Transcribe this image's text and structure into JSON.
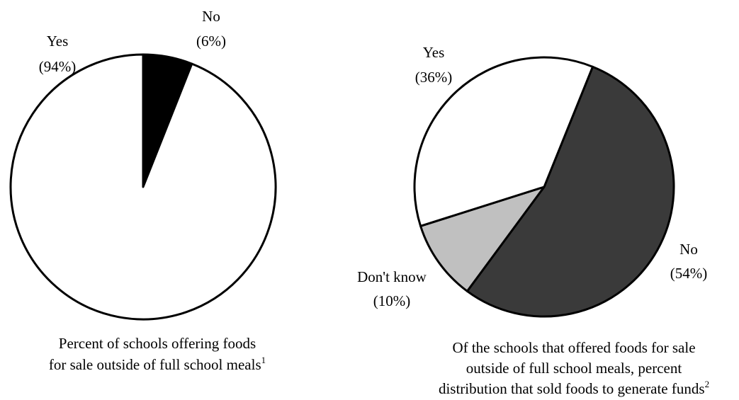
{
  "chart_data": [
    {
      "type": "pie",
      "title": "",
      "caption_lines": [
        "Percent of schools offering foods",
        "for sale outside of full school meals"
      ],
      "caption_footnote": "1",
      "start_angle_deg": 0,
      "direction": "clockwise",
      "slices": [
        {
          "label": "No",
          "value": 6,
          "value_label": "(6%)",
          "color": "#000000"
        },
        {
          "label": "Yes",
          "value": 94,
          "value_label": "(94%)",
          "color": "#ffffff"
        }
      ]
    },
    {
      "type": "pie",
      "title": "",
      "caption_lines": [
        "Of the schools that offered foods for sale",
        "outside of full school meals, percent",
        "distribution that sold foods to generate funds"
      ],
      "caption_footnote": "2",
      "start_angle_deg": 22,
      "direction": "clockwise",
      "slices": [
        {
          "label": "No",
          "value": 54,
          "value_label": "(54%)",
          "color": "#3a3a3a"
        },
        {
          "label": "Don't know",
          "value": 10,
          "value_label": "(10%)",
          "color": "#c0c0c0"
        },
        {
          "label": "Yes",
          "value": 36,
          "value_label": "(36%)",
          "color": "#ffffff"
        }
      ]
    }
  ]
}
